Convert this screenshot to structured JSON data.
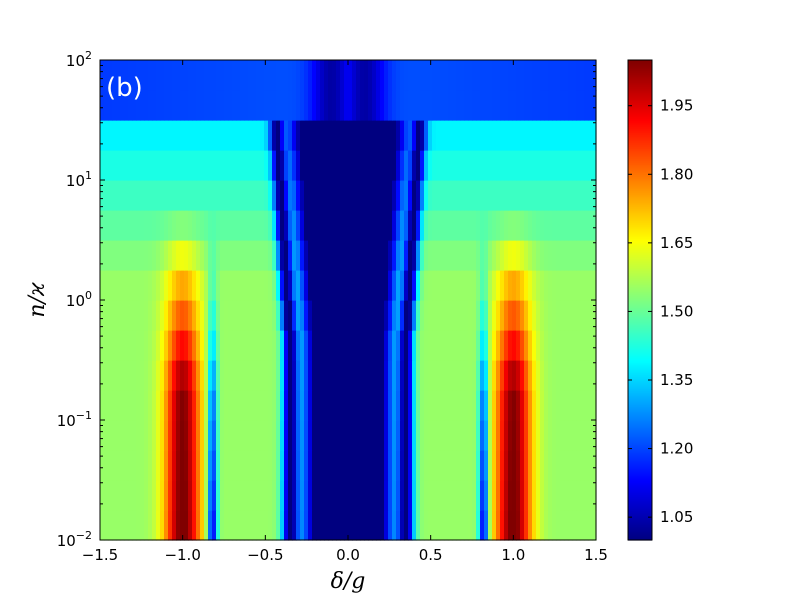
{
  "chart_data": {
    "type": "heatmap",
    "panel_label": "(b)",
    "xlabel": "δ/g",
    "ylabel": "n/ϰ",
    "xlim": [
      -1.5,
      1.5
    ],
    "ylim": [
      0.01,
      100
    ],
    "yscale": "log",
    "x_ticks": [
      {
        "value": -1.5,
        "label": "−1.5"
      },
      {
        "value": -1.0,
        "label": "−1.0"
      },
      {
        "value": -0.5,
        "label": "−0.5"
      },
      {
        "value": 0.0,
        "label": "0.0"
      },
      {
        "value": 0.5,
        "label": "0.5"
      },
      {
        "value": 1.0,
        "label": "1.0"
      },
      {
        "value": 1.5,
        "label": "1.5"
      }
    ],
    "y_ticks": [
      {
        "value": 0.01,
        "base": "10",
        "exp": "−2"
      },
      {
        "value": 0.1,
        "base": "10",
        "exp": "−1"
      },
      {
        "value": 1,
        "base": "10",
        "exp": "0"
      },
      {
        "value": 10,
        "base": "10",
        "exp": "1"
      },
      {
        "value": 100,
        "base": "10",
        "exp": "2"
      }
    ],
    "colormap": "jet",
    "colorbar": {
      "min": 1.0,
      "max": 2.05,
      "ticks": [
        {
          "value": 1.05,
          "label": "1.05"
        },
        {
          "value": 1.2,
          "label": "1.20"
        },
        {
          "value": 1.35,
          "label": "1.35"
        },
        {
          "value": 1.5,
          "label": "1.50"
        },
        {
          "value": 1.65,
          "label": "1.65"
        },
        {
          "value": 1.8,
          "label": "1.80"
        },
        {
          "value": 1.95,
          "label": "1.95"
        }
      ]
    },
    "grid": false,
    "n_rows": 16,
    "rows_log10_range": [
      -2,
      2
    ]
  }
}
